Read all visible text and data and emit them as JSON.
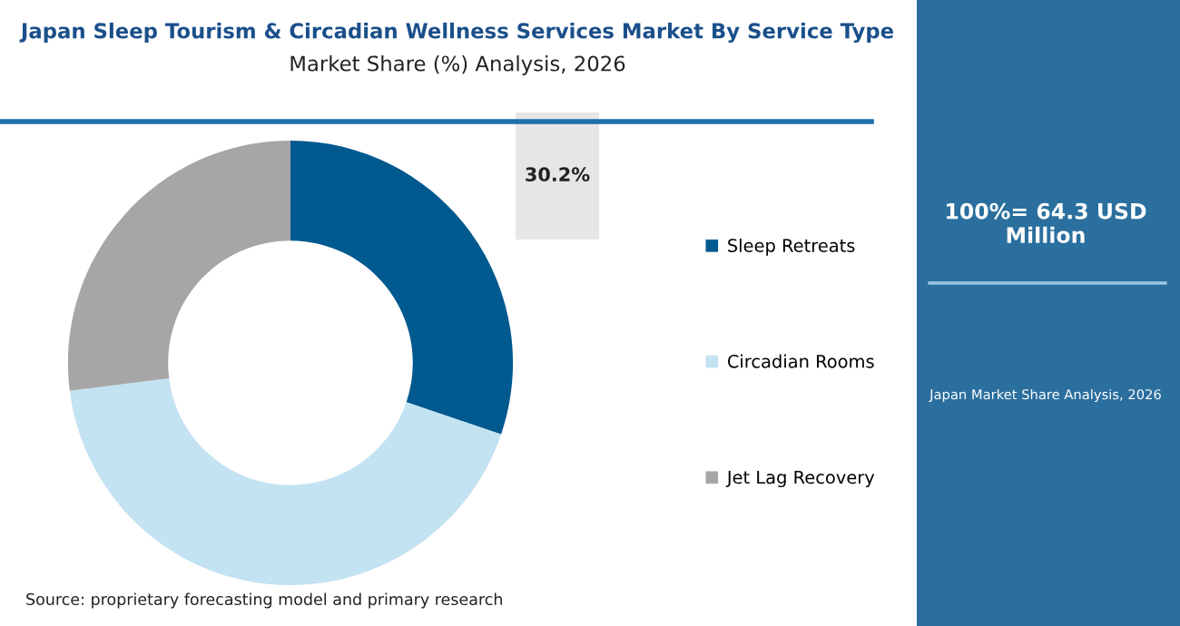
{
  "chart_data": {
    "type": "donut",
    "title": "Japan Sleep Tourism & Circadian Wellness Services Market By Service Type",
    "subtitle": "Market Share (%) Analysis, 2026",
    "categories": [
      "Sleep Retreats",
      "Circadian Rooms",
      "Jet Lag Recovery"
    ],
    "values": [
      30.2,
      42.8,
      27.0
    ],
    "colors": [
      "#00598f",
      "#c3e2f2",
      "#a6a6a6"
    ],
    "value_labels": [
      "30.2%",
      null,
      null
    ],
    "legend": "right",
    "annotations": [
      "100%= 64.3 USD Million",
      "Japan Market Share Analysis, 2026",
      "Source: proprietary forecasting model and primary research"
    ]
  }
}
